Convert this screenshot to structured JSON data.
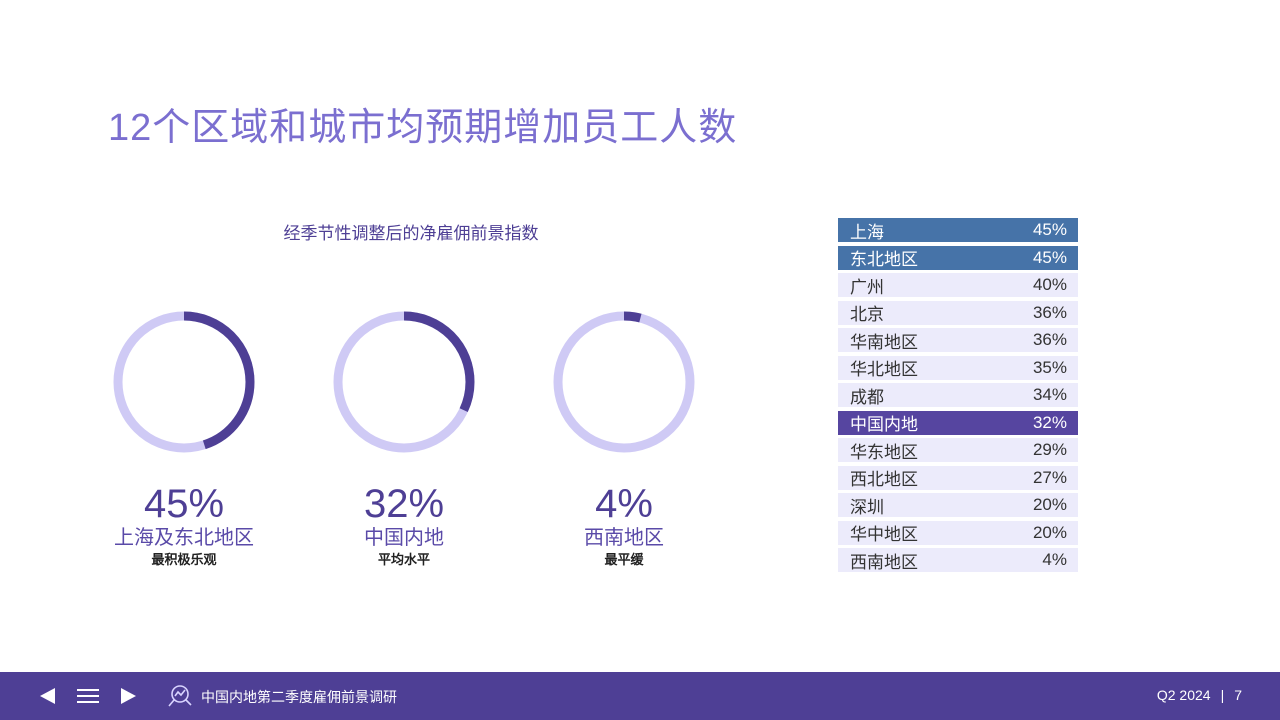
{
  "title": "12个区域和城市均预期增加员工人数",
  "chart_subtitle": "经季节性调整后的净雇佣前景指数",
  "colors": {
    "accent": "#4e3f95",
    "ring_track": "#cfcaf5",
    "ring_fill": "#4e3f95",
    "row_bg": "#ecebfb",
    "row_blue": "#4673a8",
    "row_purple": "#5645a0"
  },
  "donuts": [
    {
      "value": 45,
      "value_label": "45%",
      "label": "上海及东北地区",
      "note": "最积极乐观"
    },
    {
      "value": 32,
      "value_label": "32%",
      "label": "中国内地",
      "note": "平均水平"
    },
    {
      "value": 4,
      "value_label": "4%",
      "label": "西南地区",
      "note": "最平缓"
    }
  ],
  "table": [
    {
      "name": "上海",
      "value": "45%",
      "highlight": "blue"
    },
    {
      "name": "东北地区",
      "value": "45%",
      "highlight": "blue"
    },
    {
      "name": "广州",
      "value": "40%"
    },
    {
      "name": "北京",
      "value": "36%"
    },
    {
      "name": "华南地区",
      "value": "36%"
    },
    {
      "name": "华北地区",
      "value": "35%"
    },
    {
      "name": "成都",
      "value": "34%"
    },
    {
      "name": "中国内地",
      "value": "32%",
      "highlight": "purple"
    },
    {
      "name": "华东地区",
      "value": "29%"
    },
    {
      "name": "西北地区",
      "value": "27%"
    },
    {
      "name": "深圳",
      "value": "20%"
    },
    {
      "name": "华中地区",
      "value": "20%"
    },
    {
      "name": "西南地区",
      "value": "4%"
    }
  ],
  "footer": {
    "report_title": "中国内地第二季度雇佣前景调研",
    "quarter": "Q2 2024",
    "page": "7",
    "icons": [
      "prev-arrow-icon",
      "menu-icon",
      "next-arrow-icon",
      "search-chart-logo-icon"
    ]
  }
}
